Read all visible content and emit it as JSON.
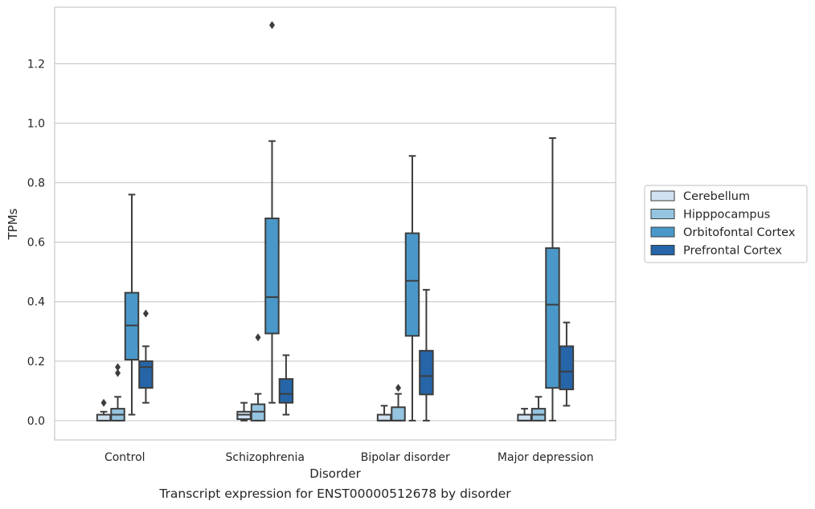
{
  "caption": "Transcript expression for ENST00000512678 by disorder",
  "chart_data": {
    "type": "box",
    "xlabel": "Disorder",
    "ylabel": "TPMs",
    "ylim": [
      -0.065,
      1.39
    ],
    "yticks": [
      0.0,
      0.2,
      0.4,
      0.6,
      0.8,
      1.0,
      1.2
    ],
    "grid": "horizontal",
    "legend_position": "right",
    "categories": [
      "Control",
      "Schizophrenia",
      "Bipolar disorder",
      "Major depression"
    ],
    "series": [
      {
        "name": "Cerebellum",
        "color": "#d0e1f2",
        "boxes": [
          {
            "whisker_low": 0.0,
            "q1": 0.0,
            "median": 0.02,
            "q3": 0.02,
            "whisker_high": 0.03,
            "outliers": [
              0.06
            ]
          },
          {
            "whisker_low": 0.0,
            "q1": 0.005,
            "median": 0.02,
            "q3": 0.03,
            "whisker_high": 0.06,
            "outliers": []
          },
          {
            "whisker_low": 0.0,
            "q1": 0.0,
            "median": 0.0,
            "q3": 0.02,
            "whisker_high": 0.05,
            "outliers": []
          },
          {
            "whisker_low": 0.0,
            "q1": 0.0,
            "median": 0.0,
            "q3": 0.02,
            "whisker_high": 0.04,
            "outliers": []
          }
        ]
      },
      {
        "name": "Hipppocampus",
        "color": "#94c4df",
        "boxes": [
          {
            "whisker_low": 0.0,
            "q1": 0.0,
            "median": 0.02,
            "q3": 0.04,
            "whisker_high": 0.08,
            "outliers": [
              0.16,
              0.18
            ]
          },
          {
            "whisker_low": 0.0,
            "q1": 0.0,
            "median": 0.03,
            "q3": 0.055,
            "whisker_high": 0.09,
            "outliers": [
              0.28
            ]
          },
          {
            "whisker_low": 0.0,
            "q1": 0.0,
            "median": 0.0,
            "q3": 0.045,
            "whisker_high": 0.09,
            "outliers": [
              0.11
            ]
          },
          {
            "whisker_low": 0.0,
            "q1": 0.0,
            "median": 0.02,
            "q3": 0.04,
            "whisker_high": 0.08,
            "outliers": []
          }
        ]
      },
      {
        "name": "Orbitofontal Cortex",
        "color": "#4a98c9",
        "boxes": [
          {
            "whisker_low": 0.02,
            "q1": 0.205,
            "median": 0.32,
            "q3": 0.43,
            "whisker_high": 0.76,
            "outliers": []
          },
          {
            "whisker_low": 0.06,
            "q1": 0.293,
            "median": 0.415,
            "q3": 0.68,
            "whisker_high": 0.94,
            "outliers": [
              1.33
            ]
          },
          {
            "whisker_low": 0.0,
            "q1": 0.285,
            "median": 0.47,
            "q3": 0.63,
            "whisker_high": 0.89,
            "outliers": []
          },
          {
            "whisker_low": 0.0,
            "q1": 0.11,
            "median": 0.39,
            "q3": 0.58,
            "whisker_high": 0.95,
            "outliers": []
          }
        ]
      },
      {
        "name": "Prefrontal Cortex",
        "color": "#2565a8",
        "boxes": [
          {
            "whisker_low": 0.06,
            "q1": 0.11,
            "median": 0.18,
            "q3": 0.2,
            "whisker_high": 0.25,
            "outliers": [
              0.36
            ]
          },
          {
            "whisker_low": 0.02,
            "q1": 0.06,
            "median": 0.09,
            "q3": 0.14,
            "whisker_high": 0.22,
            "outliers": []
          },
          {
            "whisker_low": 0.0,
            "q1": 0.088,
            "median": 0.15,
            "q3": 0.235,
            "whisker_high": 0.44,
            "outliers": []
          },
          {
            "whisker_low": 0.05,
            "q1": 0.105,
            "median": 0.165,
            "q3": 0.25,
            "whisker_high": 0.33,
            "outliers": []
          }
        ]
      }
    ]
  }
}
